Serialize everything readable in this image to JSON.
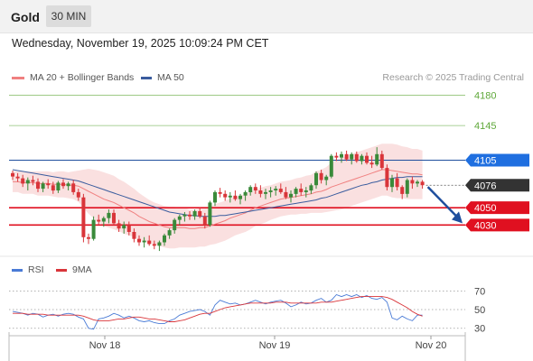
{
  "header": {
    "title": "Gold",
    "timeframe": "30 MIN"
  },
  "datetime": "Wednesday, November 19, 2025 10:09:24 PM CET",
  "legend": {
    "ma20_label": "MA 20 + Bollinger Bands",
    "ma50_label": "MA 50",
    "rsi_label": "RSI",
    "rsi_ma_label": "9MA"
  },
  "research": "Research © 2025 Trading Central",
  "colors": {
    "bull": "#3a8a3a",
    "bear": "#d9353a",
    "ma20": "#f08080",
    "ma50": "#3a5c9e",
    "band_fill": "#f8d6d6",
    "resistance": "#5fa83a",
    "support": "#e01020",
    "pivot": "#1f4f9e",
    "last": "#333333",
    "rsi": "#4a7bd6",
    "rsi_ma": "#d9353a"
  },
  "chart_data": [
    {
      "type": "candlestick",
      "y_range": [
        3998,
        4190
      ],
      "x_labels": [
        "Nov 18",
        "Nov 19",
        "Nov 20"
      ],
      "candles": [
        [
          4090,
          4093,
          4082,
          4086
        ],
        [
          4086,
          4090,
          4080,
          4084
        ],
        [
          4084,
          4088,
          4074,
          4078
        ],
        [
          4078,
          4085,
          4070,
          4082
        ],
        [
          4082,
          4087,
          4076,
          4080
        ],
        [
          4080,
          4084,
          4068,
          4072
        ],
        [
          4072,
          4080,
          4068,
          4078
        ],
        [
          4078,
          4083,
          4072,
          4076
        ],
        [
          4076,
          4080,
          4066,
          4070
        ],
        [
          4070,
          4081,
          4067,
          4079
        ],
        [
          4079,
          4083,
          4072,
          4075
        ],
        [
          4075,
          4080,
          4070,
          4078
        ],
        [
          4078,
          4082,
          4065,
          4068
        ],
        [
          4068,
          4072,
          4058,
          4062
        ],
        [
          4062,
          4066,
          4010,
          4016
        ],
        [
          4016,
          4020,
          4008,
          4014
        ],
        [
          4014,
          4040,
          4012,
          4036
        ],
        [
          4036,
          4042,
          4030,
          4034
        ],
        [
          4034,
          4040,
          4028,
          4038
        ],
        [
          4038,
          4048,
          4032,
          4044
        ],
        [
          4044,
          4048,
          4030,
          4032
        ],
        [
          4032,
          4036,
          4022,
          4026
        ],
        [
          4026,
          4034,
          4020,
          4030
        ],
        [
          4030,
          4034,
          4018,
          4022
        ],
        [
          4022,
          4026,
          4010,
          4014
        ],
        [
          4014,
          4018,
          4006,
          4010
        ],
        [
          4010,
          4016,
          4004,
          4012
        ],
        [
          4012,
          4018,
          4006,
          4008
        ],
        [
          4008,
          4012,
          4002,
          4006
        ],
        [
          4006,
          4012,
          4000,
          4010
        ],
        [
          4010,
          4020,
          4006,
          4018
        ],
        [
          4018,
          4026,
          4014,
          4024
        ],
        [
          4024,
          4038,
          4020,
          4036
        ],
        [
          4036,
          4042,
          4030,
          4040
        ],
        [
          4040,
          4045,
          4034,
          4042
        ],
        [
          4042,
          4046,
          4036,
          4040
        ],
        [
          4040,
          4048,
          4036,
          4046
        ],
        [
          4046,
          4050,
          4038,
          4040
        ],
        [
          4040,
          4044,
          4026,
          4030
        ],
        [
          4030,
          4058,
          4028,
          4056
        ],
        [
          4056,
          4070,
          4052,
          4068
        ],
        [
          4068,
          4073,
          4062,
          4066
        ],
        [
          4066,
          4070,
          4058,
          4062
        ],
        [
          4062,
          4068,
          4056,
          4064
        ],
        [
          4064,
          4070,
          4058,
          4060
        ],
        [
          4060,
          4066,
          4054,
          4064
        ],
        [
          4064,
          4070,
          4058,
          4068
        ],
        [
          4068,
          4076,
          4064,
          4074
        ],
        [
          4074,
          4078,
          4066,
          4070
        ],
        [
          4070,
          4076,
          4062,
          4066
        ],
        [
          4066,
          4072,
          4060,
          4068
        ],
        [
          4068,
          4074,
          4062,
          4070
        ],
        [
          4070,
          4075,
          4064,
          4072
        ],
        [
          4072,
          4078,
          4066,
          4068
        ],
        [
          4068,
          4074,
          4060,
          4062
        ],
        [
          4062,
          4070,
          4056,
          4066
        ],
        [
          4066,
          4074,
          4062,
          4072
        ],
        [
          4072,
          4078,
          4064,
          4068
        ],
        [
          4068,
          4074,
          4062,
          4070
        ],
        [
          4070,
          4078,
          4066,
          4076
        ],
        [
          4076,
          4092,
          4072,
          4090
        ],
        [
          4090,
          4094,
          4078,
          4082
        ],
        [
          4082,
          4088,
          4076,
          4086
        ],
        [
          4086,
          4112,
          4084,
          4110
        ],
        [
          4110,
          4114,
          4104,
          4108
        ],
        [
          4108,
          4115,
          4102,
          4112
        ],
        [
          4112,
          4116,
          4104,
          4106
        ],
        [
          4106,
          4114,
          4100,
          4112
        ],
        [
          4112,
          4115,
          4102,
          4104
        ],
        [
          4104,
          4112,
          4100,
          4110
        ],
        [
          4110,
          4114,
          4100,
          4102
        ],
        [
          4102,
          4110,
          4096,
          4100
        ],
        [
          4100,
          4120,
          4098,
          4112
        ],
        [
          4112,
          4116,
          4094,
          4096
        ],
        [
          4096,
          4100,
          4070,
          4074
        ],
        [
          4074,
          4088,
          4068,
          4084
        ],
        [
          4084,
          4090,
          4070,
          4074
        ],
        [
          4074,
          4076,
          4060,
          4066
        ],
        [
          4066,
          4084,
          4062,
          4082
        ],
        [
          4082,
          4086,
          4072,
          4078
        ],
        [
          4078,
          4082,
          4074,
          4080
        ],
        [
          4080,
          4082,
          4072,
          4076
        ]
      ],
      "ma20": [
        4080,
        4080,
        4079,
        4079,
        4079,
        4078,
        4078,
        4078,
        4077,
        4077,
        4077,
        4076,
        4076,
        4075,
        4072,
        4069,
        4066,
        4063,
        4060,
        4058,
        4056,
        4053,
        4050,
        4047,
        4044,
        4040,
        4037,
        4034,
        4032,
        4030,
        4028,
        4027,
        4027,
        4027,
        4027,
        4026,
        4026,
        4027,
        4027,
        4029,
        4031,
        4033,
        4035,
        4038,
        4040,
        4042,
        4044,
        4047,
        4050,
        4052,
        4054,
        4056,
        4058,
        4060,
        4061,
        4062,
        4063,
        4064,
        4065,
        4066,
        4068,
        4069,
        4071,
        4074,
        4076,
        4078,
        4080,
        4082,
        4084,
        4086,
        4088,
        4090,
        4092,
        4094,
        4094,
        4093,
        4092,
        4091,
        4090,
        4089,
        4089,
        4088
      ],
      "ma50": [
        4094,
        4093,
        4092,
        4091,
        4090,
        4089,
        4088,
        4087,
        4086,
        4085,
        4084,
        4083,
        4082,
        4081,
        4079,
        4077,
        4075,
        4073,
        4071,
        4069,
        4067,
        4065,
        4063,
        4061,
        4059,
        4057,
        4055,
        4053,
        4051,
        4049,
        4047,
        4045,
        4044,
        4043,
        4042,
        4041,
        4041,
        4040,
        4040,
        4040,
        4040,
        4041,
        4041,
        4042,
        4043,
        4044,
        4045,
        4046,
        4047,
        4048,
        4049,
        4050,
        4051,
        4052,
        4053,
        4054,
        4055,
        4056,
        4057,
        4058,
        4059,
        4061,
        4062,
        4064,
        4066,
        4068,
        4070,
        4072,
        4074,
        4076,
        4077,
        4079,
        4080,
        4082,
        4083,
        4084,
        4085,
        4085,
        4086,
        4086,
        4086,
        4086
      ],
      "band_width": [
        12,
        12,
        13,
        13,
        13,
        14,
        14,
        14,
        14,
        15,
        15,
        15,
        16,
        18,
        22,
        26,
        28,
        30,
        31,
        31,
        31,
        30,
        30,
        29,
        28,
        27,
        26,
        25,
        24,
        24,
        24,
        24,
        24,
        23,
        23,
        22,
        22,
        22,
        22,
        22,
        23,
        23,
        23,
        23,
        22,
        22,
        22,
        22,
        21,
        21,
        21,
        20,
        20,
        20,
        20,
        20,
        21,
        21,
        22,
        22,
        24,
        25,
        26,
        28,
        29,
        30,
        30,
        30,
        30,
        30,
        30,
        30,
        30,
        30,
        30,
        31,
        31,
        30,
        30,
        29,
        29,
        28
      ],
      "levels": [
        {
          "label": "4180",
          "value": 4180,
          "kind": "resistance"
        },
        {
          "label": "4145",
          "value": 4145,
          "kind": "resistance"
        },
        {
          "label": "4105",
          "value": 4105,
          "kind": "pivot"
        },
        {
          "label": "4076",
          "value": 4076,
          "kind": "last"
        },
        {
          "label": "4050",
          "value": 4050,
          "kind": "support"
        },
        {
          "label": "4030",
          "value": 4030,
          "kind": "support"
        }
      ],
      "projection": {
        "from": 4074,
        "to": 4032
      }
    },
    {
      "type": "line",
      "title": "RSI",
      "y_range": [
        22,
        80
      ],
      "y_ticks": [
        70,
        50,
        30
      ],
      "rsi": [
        48,
        47,
        46,
        44,
        46,
        45,
        42,
        44,
        45,
        43,
        45,
        46,
        45,
        42,
        40,
        30,
        29,
        40,
        41,
        43,
        46,
        44,
        41,
        43,
        41,
        38,
        37,
        38,
        36,
        35,
        35,
        38,
        40,
        44,
        46,
        48,
        49,
        50,
        48,
        44,
        55,
        60,
        58,
        56,
        57,
        55,
        56,
        58,
        60,
        58,
        56,
        58,
        59,
        60,
        57,
        53,
        55,
        58,
        56,
        57,
        60,
        62,
        58,
        60,
        66,
        64,
        66,
        64,
        66,
        63,
        65,
        62,
        61,
        63,
        58,
        41,
        39,
        43,
        40,
        38,
        44,
        44
      ],
      "rsi_ma": [
        46,
        46,
        46,
        45,
        45,
        45,
        45,
        44,
        44,
        44,
        44,
        44,
        44,
        44,
        43,
        41,
        39,
        38,
        38,
        38,
        39,
        40,
        40,
        41,
        42,
        42,
        41,
        40,
        40,
        39,
        38,
        37,
        37,
        38,
        39,
        41,
        43,
        45,
        46,
        46,
        48,
        50,
        52,
        53,
        54,
        55,
        56,
        57,
        57,
        57,
        57,
        57,
        58,
        58,
        58,
        57,
        57,
        57,
        57,
        57,
        57,
        58,
        58,
        58,
        59,
        60,
        61,
        62,
        63,
        64,
        64,
        64,
        64,
        64,
        63,
        61,
        58,
        55,
        52,
        48,
        45,
        43
      ]
    }
  ]
}
